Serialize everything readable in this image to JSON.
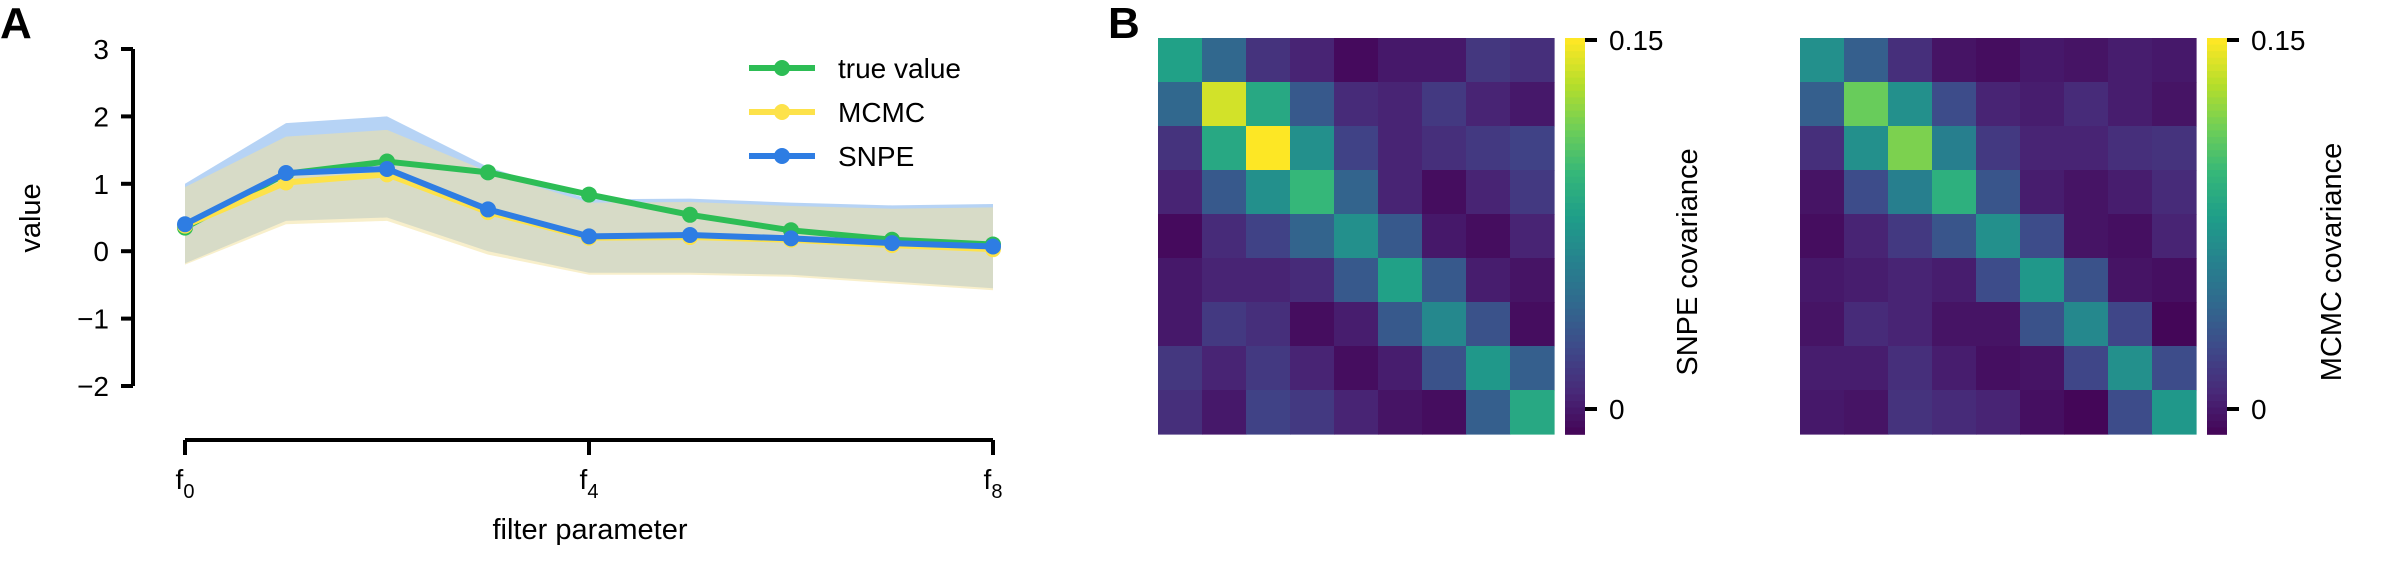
{
  "figure": {
    "panel_a_letter": "A",
    "panel_b_letter": "B"
  },
  "colors": {
    "true": "#2dbd55",
    "mcmc": "#fde24a",
    "snpe": "#2e7de3",
    "snpe_band": "#9ec4f2",
    "mcmc_band": "#f2e2a0"
  },
  "chart_data": [
    {
      "type": "line",
      "xlabel": "filter parameter",
      "ylabel": "value",
      "x": [
        0,
        1,
        2,
        3,
        4,
        5,
        6,
        7,
        8
      ],
      "x_ticks": [
        {
          "x": 0,
          "base": "f",
          "sub": "0"
        },
        {
          "x": 4,
          "base": "f",
          "sub": "4"
        },
        {
          "x": 8,
          "base": "f",
          "sub": "8"
        }
      ],
      "ylim": [
        -2,
        3
      ],
      "y_ticks": [
        3,
        2,
        1,
        0,
        -1,
        -2
      ],
      "y_tick_labels": [
        "3",
        "2",
        "1",
        "0",
        "−1",
        "−2"
      ],
      "grid": false,
      "legend_position": "top-right",
      "series": [
        {
          "name": "true value",
          "color_key": "true",
          "values": [
            0.35,
            1.15,
            1.33,
            1.17,
            0.84,
            0.54,
            0.31,
            0.17,
            0.1
          ]
        },
        {
          "name": "MCMC",
          "color_key": "mcmc",
          "values": [
            0.38,
            1.02,
            1.14,
            0.58,
            0.2,
            0.21,
            0.17,
            0.09,
            0.03
          ]
        },
        {
          "name": "SNPE",
          "color_key": "snpe",
          "values": [
            0.4,
            1.16,
            1.22,
            0.62,
            0.22,
            0.24,
            0.19,
            0.12,
            0.07
          ]
        }
      ],
      "bands": [
        {
          "of": "SNPE",
          "lower": [
            -0.18,
            0.45,
            0.5,
            0.0,
            -0.32,
            -0.32,
            -0.35,
            -0.45,
            -0.55
          ],
          "upper": [
            1.0,
            1.9,
            2.0,
            1.25,
            0.77,
            0.78,
            0.72,
            0.68,
            0.7
          ]
        },
        {
          "of": "MCMC",
          "lower": [
            -0.2,
            0.4,
            0.45,
            -0.05,
            -0.35,
            -0.35,
            -0.38,
            -0.48,
            -0.58
          ],
          "upper": [
            0.95,
            1.7,
            1.8,
            1.18,
            0.72,
            0.73,
            0.67,
            0.63,
            0.65
          ]
        }
      ]
    },
    {
      "type": "heatmap",
      "colorbar_label": "SNPE covariance",
      "colorbar_ticks": [
        "0.15",
        "0"
      ],
      "vmin": 0,
      "vmax": 0.15,
      "matrix": [
        [
          0.085,
          0.05,
          0.022,
          0.015,
          0.004,
          0.01,
          0.01,
          0.024,
          0.02
        ],
        [
          0.05,
          0.14,
          0.09,
          0.042,
          0.018,
          0.015,
          0.025,
          0.015,
          0.01
        ],
        [
          0.022,
          0.09,
          0.15,
          0.075,
          0.03,
          0.015,
          0.02,
          0.025,
          0.03
        ],
        [
          0.015,
          0.042,
          0.075,
          0.1,
          0.048,
          0.015,
          0.005,
          0.015,
          0.025
        ],
        [
          0.004,
          0.018,
          0.03,
          0.048,
          0.075,
          0.042,
          0.01,
          0.005,
          0.015
        ],
        [
          0.01,
          0.015,
          0.015,
          0.018,
          0.042,
          0.085,
          0.042,
          0.012,
          0.008
        ],
        [
          0.01,
          0.025,
          0.02,
          0.005,
          0.012,
          0.042,
          0.07,
          0.038,
          0.005
        ],
        [
          0.024,
          0.015,
          0.025,
          0.015,
          0.005,
          0.012,
          0.038,
          0.08,
          0.045
        ],
        [
          0.02,
          0.01,
          0.03,
          0.025,
          0.015,
          0.008,
          0.005,
          0.045,
          0.09
        ]
      ]
    },
    {
      "type": "heatmap",
      "colorbar_label": "MCMC covariance",
      "colorbar_ticks": [
        "0.15",
        "0"
      ],
      "vmin": 0,
      "vmax": 0.15,
      "matrix": [
        [
          0.075,
          0.045,
          0.02,
          0.008,
          0.005,
          0.01,
          0.008,
          0.012,
          0.01
        ],
        [
          0.045,
          0.115,
          0.075,
          0.035,
          0.015,
          0.012,
          0.018,
          0.012,
          0.008
        ],
        [
          0.02,
          0.075,
          0.12,
          0.065,
          0.025,
          0.015,
          0.015,
          0.02,
          0.022
        ],
        [
          0.008,
          0.035,
          0.065,
          0.095,
          0.04,
          0.012,
          0.008,
          0.012,
          0.018
        ],
        [
          0.005,
          0.015,
          0.025,
          0.04,
          0.075,
          0.035,
          0.008,
          0.006,
          0.015
        ],
        [
          0.01,
          0.012,
          0.015,
          0.012,
          0.035,
          0.08,
          0.038,
          0.008,
          0.006
        ],
        [
          0.008,
          0.018,
          0.015,
          0.008,
          0.008,
          0.038,
          0.07,
          0.032,
          0.002
        ],
        [
          0.012,
          0.012,
          0.02,
          0.012,
          0.006,
          0.008,
          0.032,
          0.075,
          0.035
        ],
        [
          0.01,
          0.008,
          0.022,
          0.018,
          0.015,
          0.006,
          0.002,
          0.035,
          0.08
        ]
      ]
    }
  ]
}
